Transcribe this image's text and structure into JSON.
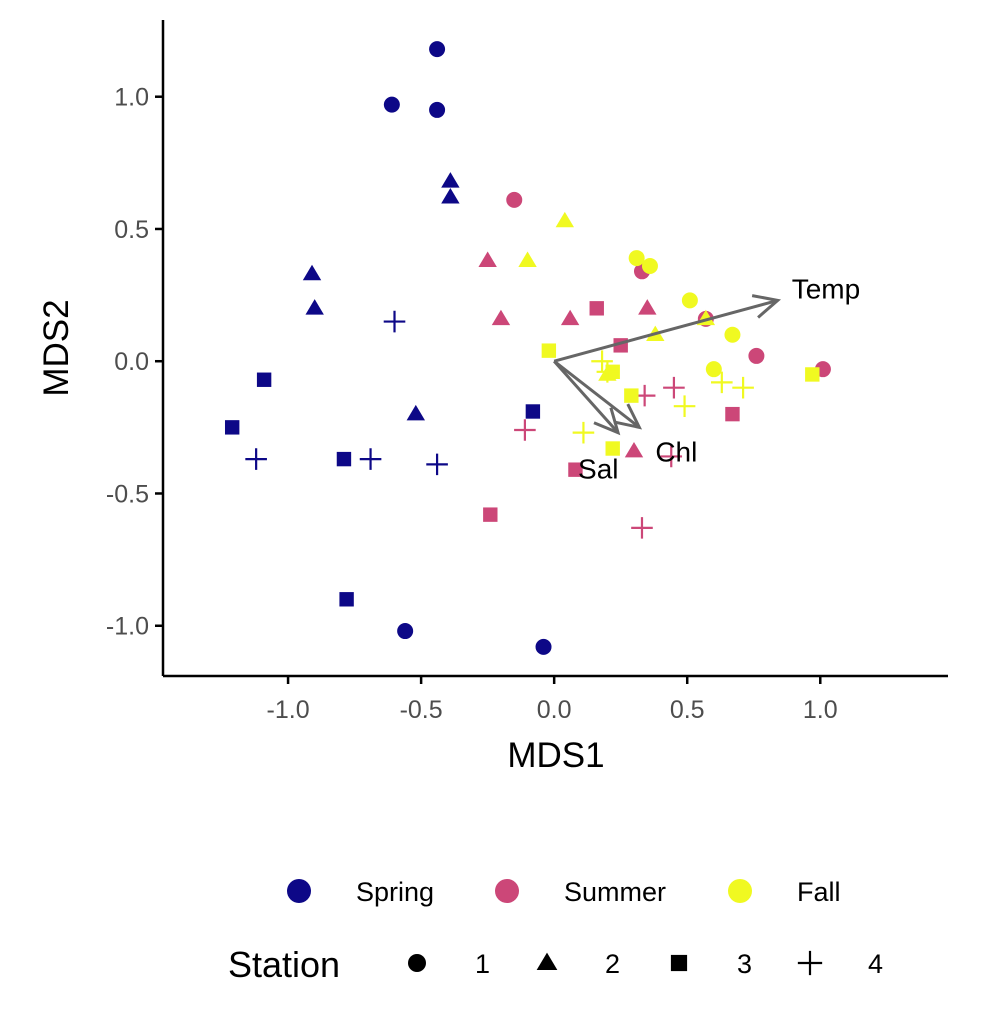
{
  "chart_data": {
    "type": "scatter",
    "xlabel": "MDS1",
    "ylabel": "MDS2",
    "xlim": [
      -1.47,
      1.48
    ],
    "ylim": [
      -1.19,
      1.29
    ],
    "x_ticks": [
      -1.0,
      -0.5,
      0.0,
      0.5,
      1.0
    ],
    "x_tick_labels": [
      "-1.0",
      "-0.5",
      "0.0",
      "0.5",
      "1.0"
    ],
    "y_ticks": [
      -1.0,
      -0.5,
      0.0,
      0.5,
      1.0
    ],
    "y_tick_labels": [
      "-1.0",
      "-0.5",
      "0.0",
      "0.5",
      "1.0"
    ],
    "grid": false,
    "legend_position": "bottom",
    "season_legend": {
      "entries": [
        {
          "label": "Spring",
          "color": "#0d0887"
        },
        {
          "label": "Summer",
          "color": "#cc4778"
        },
        {
          "label": "Fall",
          "color": "#f0f921"
        }
      ]
    },
    "station_legend": {
      "title": "Station",
      "entries": [
        {
          "label": "1",
          "shape": "circle"
        },
        {
          "label": "2",
          "shape": "triangle"
        },
        {
          "label": "3",
          "shape": "square"
        },
        {
          "label": "4",
          "shape": "plus"
        }
      ]
    },
    "vectors": [
      {
        "label": "Temp",
        "x": 0.84,
        "y": 0.23,
        "color": "#666666"
      },
      {
        "label": "Sal",
        "x": 0.24,
        "y": -0.27,
        "color": "#666666"
      },
      {
        "label": "Chl",
        "x": 0.32,
        "y": -0.25,
        "color": "#666666"
      }
    ],
    "series": [
      {
        "season": "Spring",
        "station": "1",
        "points": [
          [
            -0.44,
            1.18
          ],
          [
            -0.61,
            0.97
          ],
          [
            -0.44,
            0.95
          ],
          [
            -0.56,
            -1.02
          ],
          [
            -0.04,
            -1.08
          ]
        ]
      },
      {
        "season": "Spring",
        "station": "2",
        "points": [
          [
            -0.39,
            0.68
          ],
          [
            -0.39,
            0.62
          ],
          [
            -0.91,
            0.33
          ],
          [
            -0.9,
            0.2
          ],
          [
            -0.52,
            -0.2
          ]
        ]
      },
      {
        "season": "Spring",
        "station": "3",
        "points": [
          [
            -1.09,
            -0.07
          ],
          [
            -1.21,
            -0.25
          ],
          [
            -0.79,
            -0.37
          ],
          [
            -0.78,
            -0.9
          ],
          [
            -0.08,
            -0.19
          ]
        ]
      },
      {
        "season": "Spring",
        "station": "4",
        "points": [
          [
            -0.6,
            0.15
          ],
          [
            -1.12,
            -0.37
          ],
          [
            -0.69,
            -0.37
          ],
          [
            -0.44,
            -0.39
          ]
        ]
      },
      {
        "season": "Summer",
        "station": "1",
        "points": [
          [
            -0.15,
            0.61
          ],
          [
            0.33,
            0.34
          ],
          [
            0.57,
            0.16
          ],
          [
            0.76,
            0.02
          ],
          [
            1.01,
            -0.03
          ]
        ]
      },
      {
        "season": "Summer",
        "station": "2",
        "points": [
          [
            -0.25,
            0.38
          ],
          [
            -0.2,
            0.16
          ],
          [
            0.06,
            0.16
          ],
          [
            0.35,
            0.2
          ],
          [
            0.3,
            -0.34
          ]
        ]
      },
      {
        "season": "Summer",
        "station": "3",
        "points": [
          [
            0.16,
            0.2
          ],
          [
            0.25,
            0.06
          ],
          [
            0.67,
            -0.2
          ],
          [
            0.08,
            -0.41
          ],
          [
            -0.24,
            -0.58
          ]
        ]
      },
      {
        "season": "Summer",
        "station": "4",
        "points": [
          [
            0.34,
            -0.13
          ],
          [
            0.45,
            -0.1
          ],
          [
            -0.11,
            -0.26
          ],
          [
            0.44,
            -0.36
          ],
          [
            0.33,
            -0.63
          ]
        ]
      },
      {
        "season": "Fall",
        "station": "1",
        "points": [
          [
            0.31,
            0.39
          ],
          [
            0.36,
            0.36
          ],
          [
            0.51,
            0.23
          ],
          [
            0.67,
            0.1
          ],
          [
            0.6,
            -0.03
          ]
        ]
      },
      {
        "season": "Fall",
        "station": "2",
        "points": [
          [
            0.04,
            0.53
          ],
          [
            -0.1,
            0.38
          ],
          [
            0.38,
            0.1
          ],
          [
            0.57,
            0.16
          ],
          [
            0.2,
            -0.05
          ]
        ]
      },
      {
        "season": "Fall",
        "station": "3",
        "points": [
          [
            -0.02,
            0.04
          ],
          [
            0.22,
            -0.04
          ],
          [
            0.29,
            -0.13
          ],
          [
            0.22,
            -0.33
          ],
          [
            0.97,
            -0.05
          ]
        ]
      },
      {
        "season": "Fall",
        "station": "4",
        "points": [
          [
            0.18,
            0.0
          ],
          [
            0.2,
            -0.04
          ],
          [
            0.63,
            -0.08
          ],
          [
            0.71,
            -0.1
          ],
          [
            0.49,
            -0.17
          ],
          [
            0.11,
            -0.27
          ]
        ]
      }
    ]
  }
}
